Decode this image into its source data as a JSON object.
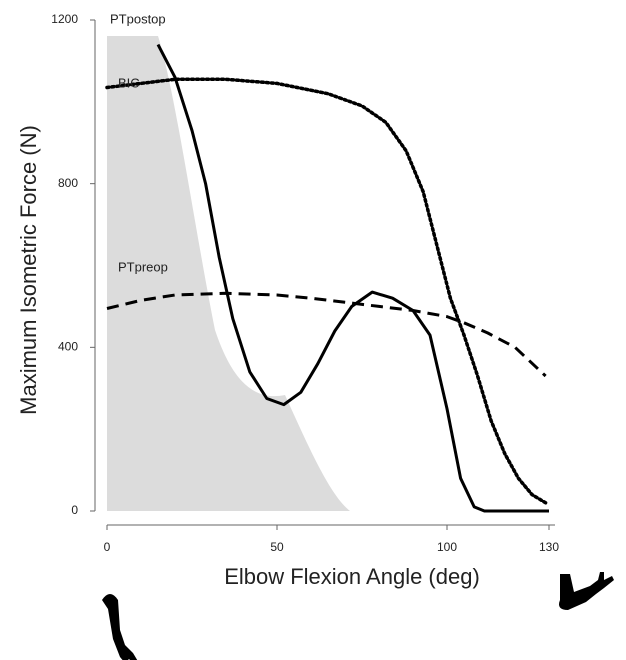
{
  "chart_data": {
    "type": "line",
    "x_label": "Elbow Flexion Angle (deg)",
    "y_label": "Maximum Isometric Force (N)",
    "xlim": [
      0,
      130
    ],
    "xticks": [
      0,
      50,
      100,
      130
    ],
    "ylim": [
      0,
      1200
    ],
    "yticks": [
      0,
      400,
      800,
      1200
    ],
    "series": [
      {
        "name": "PTpostop",
        "color": "#000000",
        "style": "solid",
        "x": [
          15,
          20,
          25,
          29,
          33,
          37,
          42,
          47,
          52,
          57,
          62,
          67,
          72,
          78,
          84,
          90,
          95,
          100,
          104,
          108,
          111,
          130
        ],
        "values": [
          1140,
          1060,
          930,
          800,
          620,
          470,
          340,
          275,
          260,
          290,
          360,
          440,
          500,
          535,
          520,
          490,
          430,
          250,
          80,
          10,
          0,
          0
        ]
      },
      {
        "name": "BIC",
        "color": "#000000",
        "style": "dotted",
        "x": [
          0,
          10,
          20,
          35,
          50,
          65,
          75,
          82,
          88,
          93,
          97,
          101,
          105,
          109,
          113,
          117,
          121,
          125,
          129
        ],
        "values": [
          1035,
          1045,
          1055,
          1055,
          1045,
          1020,
          990,
          950,
          880,
          780,
          650,
          520,
          430,
          330,
          220,
          140,
          80,
          40,
          20
        ]
      },
      {
        "name": "PTpreop",
        "color": "#000000",
        "style": "dashed",
        "x": [
          0,
          10,
          20,
          35,
          50,
          60,
          70,
          80,
          90,
          100,
          105,
          112,
          120,
          129
        ],
        "values": [
          495,
          515,
          528,
          532,
          528,
          520,
          510,
          500,
          490,
          475,
          460,
          435,
          400,
          330
        ]
      }
    ]
  }
}
